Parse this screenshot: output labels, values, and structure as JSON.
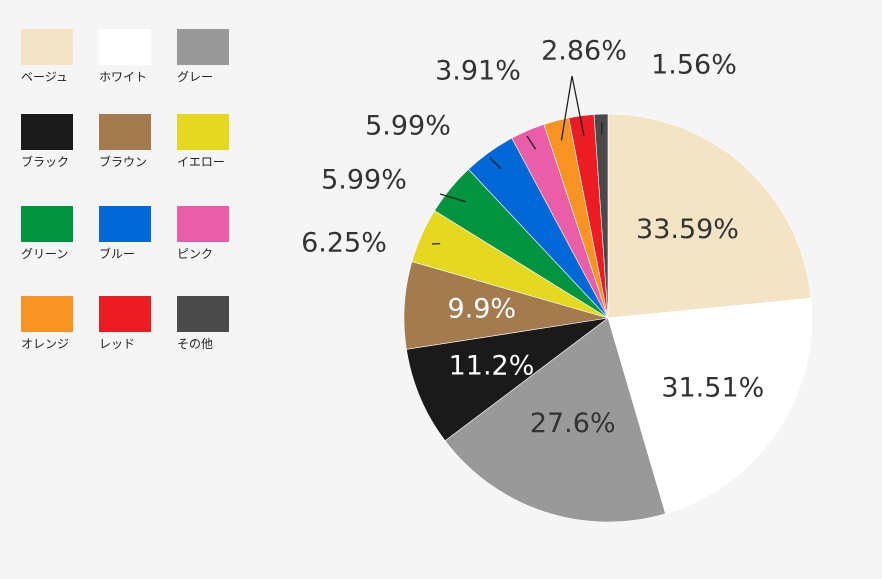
{
  "chart_data": {
    "type": "pie",
    "start_angle_deg": 90,
    "direction": "clockwise",
    "legend_position": "left",
    "slices": [
      {
        "label": "ベージュ",
        "value": 33.59,
        "display": "33.59%",
        "color": "#f2e4c4",
        "text_color": "#333333"
      },
      {
        "label": "ホワイト",
        "value": 31.51,
        "display": "31.51%",
        "color": "#ffffff",
        "text_color": "#333333"
      },
      {
        "label": "グレー",
        "value": 27.6,
        "display": "27.6%",
        "color": "#999999",
        "text_color": "#333333"
      },
      {
        "label": "ブラック",
        "value": 11.2,
        "display": "11.2%",
        "color": "#1a1a1a",
        "text_color": "#ffffff"
      },
      {
        "label": "ブラウン",
        "value": 9.9,
        "display": "9.9%",
        "color": "#a47a4f",
        "text_color": "#ffffff"
      },
      {
        "label": "イエロー",
        "value": 6.25,
        "display": "6.25%",
        "color": "#e6d820",
        "text_color": "#333333"
      },
      {
        "label": "グリーン",
        "value": 5.99,
        "display": "5.99%",
        "color": "#009440",
        "text_color": "#333333"
      },
      {
        "label": "ブルー",
        "value": 5.99,
        "display": "5.99%",
        "color": "#0068d6",
        "text_color": "#333333"
      },
      {
        "label": "ピンク",
        "value": 3.91,
        "display": "3.91%",
        "color": "#ea5ea8",
        "text_color": "#333333"
      },
      {
        "label": "オレンジ",
        "value": 2.86,
        "display": "2.86%",
        "color": "#f79423",
        "text_color": "#333333"
      },
      {
        "label": "レッド",
        "value": 2.86,
        "display": "2.86%",
        "color": "#eb1c24",
        "text_color": "#333333"
      },
      {
        "label": "その他",
        "value": 1.56,
        "display": "1.56%",
        "color": "#4a4a4a",
        "text_color": "#333333"
      }
    ]
  }
}
